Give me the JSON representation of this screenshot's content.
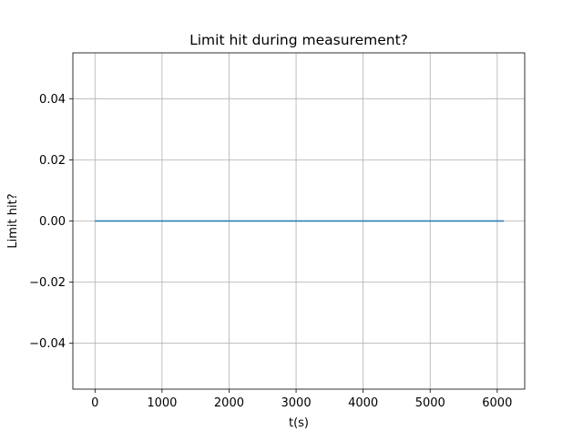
{
  "chart_data": {
    "type": "line",
    "title": "Limit hit during measurement?",
    "xlabel": "t(s)",
    "ylabel": "Limit hit?",
    "xlim": [
      -330,
      6410
    ],
    "ylim": [
      -0.055,
      0.055
    ],
    "grid": true,
    "x_ticks": [
      0,
      1000,
      2000,
      3000,
      4000,
      5000,
      6000
    ],
    "x_tick_labels": [
      "0",
      "1000",
      "2000",
      "3000",
      "4000",
      "5000",
      "6000"
    ],
    "y_ticks": [
      -0.04,
      -0.02,
      0.0,
      0.02,
      0.04
    ],
    "y_tick_labels": [
      "−0.04",
      "−0.02",
      "0.00",
      "0.02",
      "0.04"
    ],
    "series": [
      {
        "color": "#1f77b4",
        "x": [
          0,
          6100
        ],
        "y": [
          0,
          0
        ]
      }
    ]
  }
}
